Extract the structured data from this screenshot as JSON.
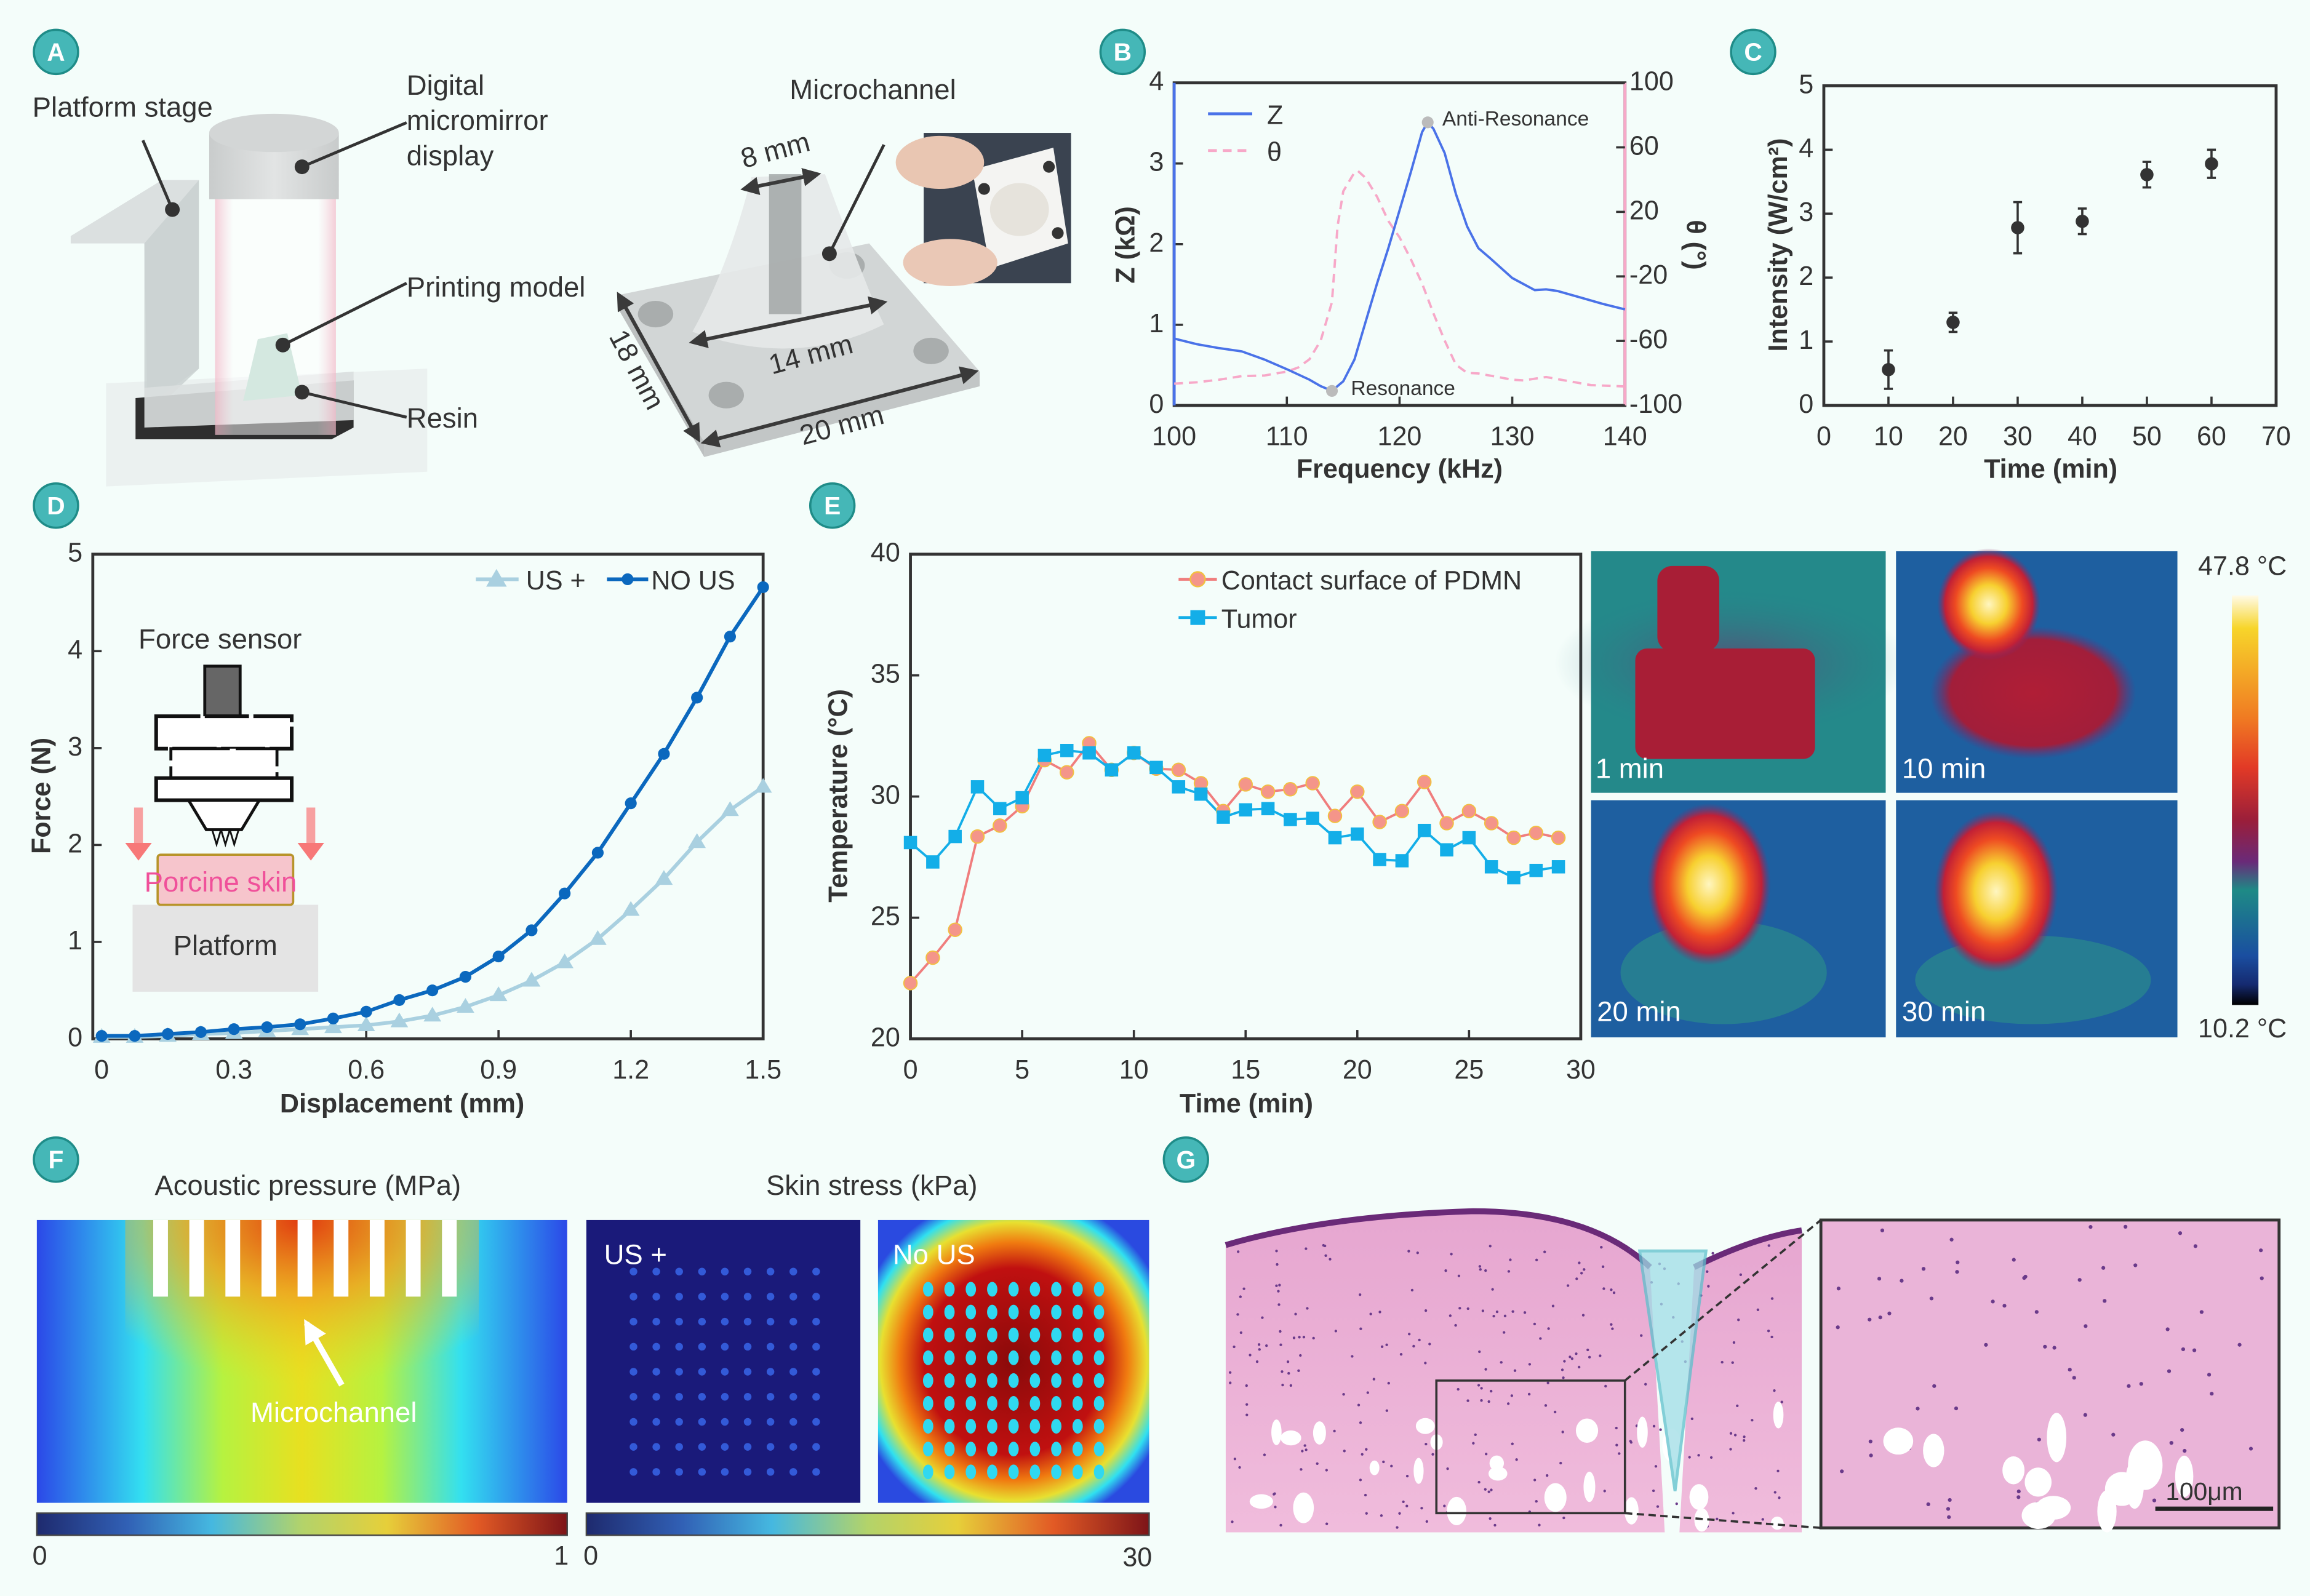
{
  "colors": {
    "badge": "#45b7b7",
    "background": "#f4fdfa",
    "z_line": "#4a72e8",
    "theta_line": "#f7a8c8",
    "us_plus": "#a9d0e0",
    "no_us": "#0b68be",
    "contact": "#f4958a",
    "tumor": "#13aee8"
  },
  "panels": {
    "A": {
      "badge": "A",
      "platform_stage": "Platform stage",
      "dmd_line1": "Digital",
      "dmd_line2": "micromirror",
      "dmd_line3": "display",
      "printing_model": "Printing model",
      "resin": "Resin",
      "microchannel": "Microchannel",
      "dim_8": "8 mm",
      "dim_14": "14 mm",
      "dim_18": "18 mm",
      "dim_20": "20 mm"
    },
    "B": {
      "badge": "B",
      "legend_z": "Z",
      "legend_theta": "θ",
      "anti_resonance": "Anti-Resonance",
      "resonance": "Resonance"
    },
    "C": {
      "badge": "C"
    },
    "D": {
      "badge": "D",
      "legend_us": "US +",
      "legend_no_us": "NO US",
      "force_sensor": "Force sensor",
      "porcine_skin": "Porcine skin",
      "platform": "Platform"
    },
    "E": {
      "badge": "E",
      "legend_contact": "Contact surface of PDMN",
      "legend_tumor": "Tumor",
      "thermal_labels": [
        "1 min",
        "10 min",
        "20 min",
        "30 min"
      ],
      "scale_max": "47.8 °C",
      "scale_min": "10.2 °C"
    },
    "F": {
      "badge": "F",
      "acoustic_title": "Acoustic pressure (MPa)",
      "stress_title": "Skin stress (kPa)",
      "microchannel": "Microchannel",
      "us_plus": "US +",
      "no_us": "No US",
      "acoustic_min": "0",
      "acoustic_max": "1",
      "stress_min": "0",
      "stress_max": "30"
    },
    "G": {
      "badge": "G",
      "scale_bar": "100μm"
    }
  },
  "chart_data": [
    {
      "type": "line",
      "panel": "B",
      "title": "",
      "xlabel": "Frequency (kHz)",
      "ylabel": "Z (kΩ)",
      "y2label": "θ (°)",
      "xlim": [
        100,
        140
      ],
      "ylim": [
        0,
        4
      ],
      "y2lim": [
        -100,
        100
      ],
      "xticks": [
        100,
        110,
        120,
        130,
        140
      ],
      "yticks": [
        0,
        1,
        2,
        3,
        4
      ],
      "y2ticks": [
        100,
        60,
        20,
        -20,
        -60,
        -100
      ],
      "grid": false,
      "legend": "top-left",
      "series": [
        {
          "name": "Z",
          "axis": "left",
          "style": "solid",
          "x": [
            100,
            102,
            104,
            106,
            108,
            110,
            112,
            113,
            114,
            115,
            116,
            117,
            118,
            119,
            120,
            121,
            122,
            122.5,
            123,
            124,
            125,
            126,
            127,
            128,
            130,
            132,
            133,
            134,
            136,
            138,
            140
          ],
          "y": [
            0.83,
            0.76,
            0.71,
            0.67,
            0.57,
            0.45,
            0.32,
            0.24,
            0.18,
            0.3,
            0.57,
            1.04,
            1.51,
            1.95,
            2.42,
            2.89,
            3.39,
            3.51,
            3.43,
            3.13,
            2.62,
            2.22,
            1.95,
            1.83,
            1.58,
            1.43,
            1.44,
            1.42,
            1.34,
            1.26,
            1.19
          ]
        },
        {
          "name": "θ",
          "axis": "right",
          "style": "dashed",
          "x": [
            100,
            102,
            104,
            106,
            108,
            110,
            111,
            112,
            113,
            114,
            114.5,
            115,
            116,
            116.3,
            117,
            118,
            119,
            120,
            121,
            122,
            123,
            124,
            125,
            126,
            127,
            128,
            130,
            131,
            133,
            135,
            137,
            140
          ],
          "y": [
            -86.5,
            -85.7,
            -84,
            -81.8,
            -81.5,
            -79,
            -76.5,
            -71.4,
            -59.7,
            -36,
            11,
            32.8,
            44.5,
            45.4,
            41,
            29.4,
            14.3,
            4.2,
            -9.2,
            -24.4,
            -42.9,
            -59.7,
            -74.8,
            -79.8,
            -80.2,
            -81.5,
            -84,
            -84.5,
            -82.4,
            -84.9,
            -87.4,
            -88.2
          ]
        }
      ],
      "annotations": [
        {
          "text": "Anti-Resonance",
          "x": 122.5,
          "y": 3.51
        },
        {
          "text": "Resonance",
          "x": 114,
          "y": 0.18
        }
      ]
    },
    {
      "type": "scatter",
      "panel": "C",
      "title": "",
      "xlabel": "Time (min)",
      "ylabel": "Intensity (W/cm²)",
      "xlim": [
        0,
        70
      ],
      "ylim": [
        0,
        5
      ],
      "xticks": [
        0,
        10,
        20,
        30,
        40,
        50,
        60,
        70
      ],
      "yticks": [
        0,
        1,
        2,
        3,
        4,
        5
      ],
      "grid": false,
      "series": [
        {
          "x": [
            10,
            20,
            30,
            40,
            50,
            60
          ],
          "y": [
            0.56,
            1.3,
            2.78,
            2.88,
            3.61,
            3.78
          ],
          "err": [
            0.3,
            0.15,
            0.4,
            0.2,
            0.2,
            0.22
          ]
        }
      ]
    },
    {
      "type": "line",
      "panel": "D",
      "title": "",
      "xlabel": "Displacement (mm)",
      "ylabel": "Force (N)",
      "xlim": [
        -0.02,
        1.5
      ],
      "ylim": [
        0,
        5
      ],
      "xticks": [
        0,
        0.3,
        0.6,
        0.9,
        1.2,
        1.5
      ],
      "yticks": [
        0,
        1,
        2,
        3,
        4,
        5
      ],
      "grid": false,
      "legend": "top-right",
      "x": [
        0,
        0.075,
        0.15,
        0.225,
        0.3,
        0.375,
        0.45,
        0.525,
        0.6,
        0.675,
        0.75,
        0.825,
        0.9,
        0.975,
        1.05,
        1.125,
        1.2,
        1.275,
        1.35,
        1.425,
        1.5
      ],
      "series": [
        {
          "name": "US +",
          "marker": "triangle",
          "y": [
            0.02,
            0.02,
            0.03,
            0.05,
            0.06,
            0.08,
            0.1,
            0.12,
            0.14,
            0.18,
            0.24,
            0.33,
            0.45,
            0.6,
            0.79,
            1.03,
            1.33,
            1.65,
            2.03,
            2.36,
            2.6
          ]
        },
        {
          "name": "NO US",
          "marker": "circle",
          "y": [
            0.03,
            0.03,
            0.05,
            0.07,
            0.1,
            0.12,
            0.15,
            0.21,
            0.28,
            0.4,
            0.5,
            0.64,
            0.85,
            1.12,
            1.5,
            1.92,
            2.43,
            2.94,
            3.52,
            4.15,
            4.66
          ]
        }
      ]
    },
    {
      "type": "line",
      "panel": "E",
      "title": "",
      "xlabel": "Time (min)",
      "ylabel": "Temperature (°C)",
      "xlim": [
        0,
        30
      ],
      "ylim": [
        20,
        40
      ],
      "xticks": [
        0,
        5,
        10,
        15,
        20,
        25,
        30
      ],
      "yticks": [
        20,
        25,
        30,
        35,
        40
      ],
      "grid": false,
      "legend": "top-right",
      "x": [
        0,
        1,
        2,
        3,
        4,
        5,
        6,
        7,
        8,
        9,
        10,
        11,
        12,
        13,
        14,
        15,
        16,
        17,
        18,
        19,
        20,
        21,
        22,
        23,
        24,
        25,
        26,
        27,
        28,
        29
      ],
      "series": [
        {
          "name": "Contact surface of PDMN",
          "marker": "circle",
          "y": [
            22.3,
            23.35,
            24.5,
            28.35,
            28.8,
            29.6,
            31.5,
            31.0,
            32.2,
            31.1,
            31.8,
            31.15,
            31.1,
            30.55,
            29.4,
            30.5,
            30.2,
            30.3,
            30.55,
            29.2,
            30.2,
            28.95,
            29.4,
            30.6,
            28.9,
            29.4,
            28.9,
            28.3,
            28.5,
            28.3
          ]
        },
        {
          "name": "Tumor",
          "marker": "square",
          "y": [
            28.1,
            27.3,
            28.35,
            30.4,
            29.5,
            29.95,
            31.7,
            31.9,
            31.8,
            31.1,
            31.8,
            31.2,
            30.4,
            30.1,
            29.15,
            29.45,
            29.5,
            29.05,
            29.1,
            28.3,
            28.45,
            27.4,
            27.35,
            28.6,
            27.8,
            28.3,
            27.1,
            26.65,
            26.95,
            27.1
          ]
        }
      ]
    }
  ]
}
